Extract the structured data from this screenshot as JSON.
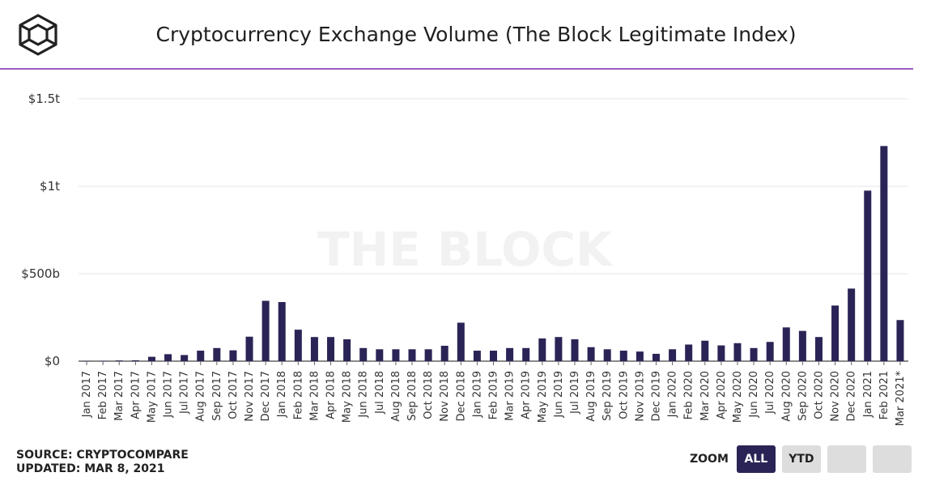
{
  "header": {
    "title": "Cryptocurrency Exchange Volume (The Block Legitimate Index)",
    "logo_icon": "the-block-cube-logo-icon"
  },
  "watermark": "THE BLOCK",
  "footer": {
    "source": "SOURCE: CRYPTOCOMPARE",
    "updated": "UPDATED: MAR 8, 2021"
  },
  "zoom": {
    "label": "ZOOM",
    "buttons": [
      "ALL",
      "YTD",
      "",
      ""
    ],
    "active": "ALL"
  },
  "colors": {
    "bar": "#2a2456",
    "accent_rule": "#9b5cc9",
    "grid": "#e6e6e6"
  },
  "chart_data": {
    "type": "bar",
    "title": "Cryptocurrency Exchange Volume (The Block Legitimate Index)",
    "xlabel": "",
    "ylabel": "",
    "ylim": [
      0,
      1.5
    ],
    "y_unit": "trillion USD",
    "yticks": [
      {
        "value": 0,
        "label": "$0"
      },
      {
        "value": 0.5,
        "label": "$500b"
      },
      {
        "value": 1.0,
        "label": "$1t"
      },
      {
        "value": 1.5,
        "label": "$1.5t"
      }
    ],
    "grid": true,
    "categories": [
      "Jan 2017",
      "Feb 2017",
      "Mar 2017",
      "Apr 2017",
      "May 2017",
      "Jun 2017",
      "Jul 2017",
      "Aug 2017",
      "Sep 2017",
      "Oct 2017",
      "Nov 2017",
      "Dec 2017",
      "Jan 2018",
      "Feb 2018",
      "Mar 2018",
      "Apr 2018",
      "May 2018",
      "Jun 2018",
      "Jul 2018",
      "Aug 2018",
      "Sep 2018",
      "Oct 2018",
      "Nov 2018",
      "Dec 2018",
      "Jan 2019",
      "Feb 2019",
      "Mar 2019",
      "Apr 2019",
      "May 2019",
      "Jun 2019",
      "Jul 2019",
      "Aug 2019",
      "Sep 2019",
      "Oct 2019",
      "Nov 2019",
      "Dec 2019",
      "Jan 2020",
      "Feb 2020",
      "Mar 2020",
      "Apr 2020",
      "May 2020",
      "Jun 2020",
      "Jul 2020",
      "Aug 2020",
      "Sep 2020",
      "Oct 2020",
      "Nov 2020",
      "Dec 2020",
      "Jan 2021",
      "Feb 2021",
      "Mar 2021*"
    ],
    "values": [
      0.001,
      0.002,
      0.004,
      0.005,
      0.025,
      0.04,
      0.035,
      0.06,
      0.075,
      0.062,
      0.14,
      0.345,
      0.338,
      0.18,
      0.138,
      0.138,
      0.125,
      0.075,
      0.068,
      0.068,
      0.068,
      0.068,
      0.088,
      0.22,
      0.06,
      0.06,
      0.075,
      0.075,
      0.13,
      0.138,
      0.125,
      0.08,
      0.068,
      0.06,
      0.055,
      0.042,
      0.068,
      0.095,
      0.117,
      0.09,
      0.103,
      0.075,
      0.11,
      0.193,
      0.173,
      0.138,
      0.318,
      0.415,
      0.975,
      1.23,
      0.235
    ]
  }
}
